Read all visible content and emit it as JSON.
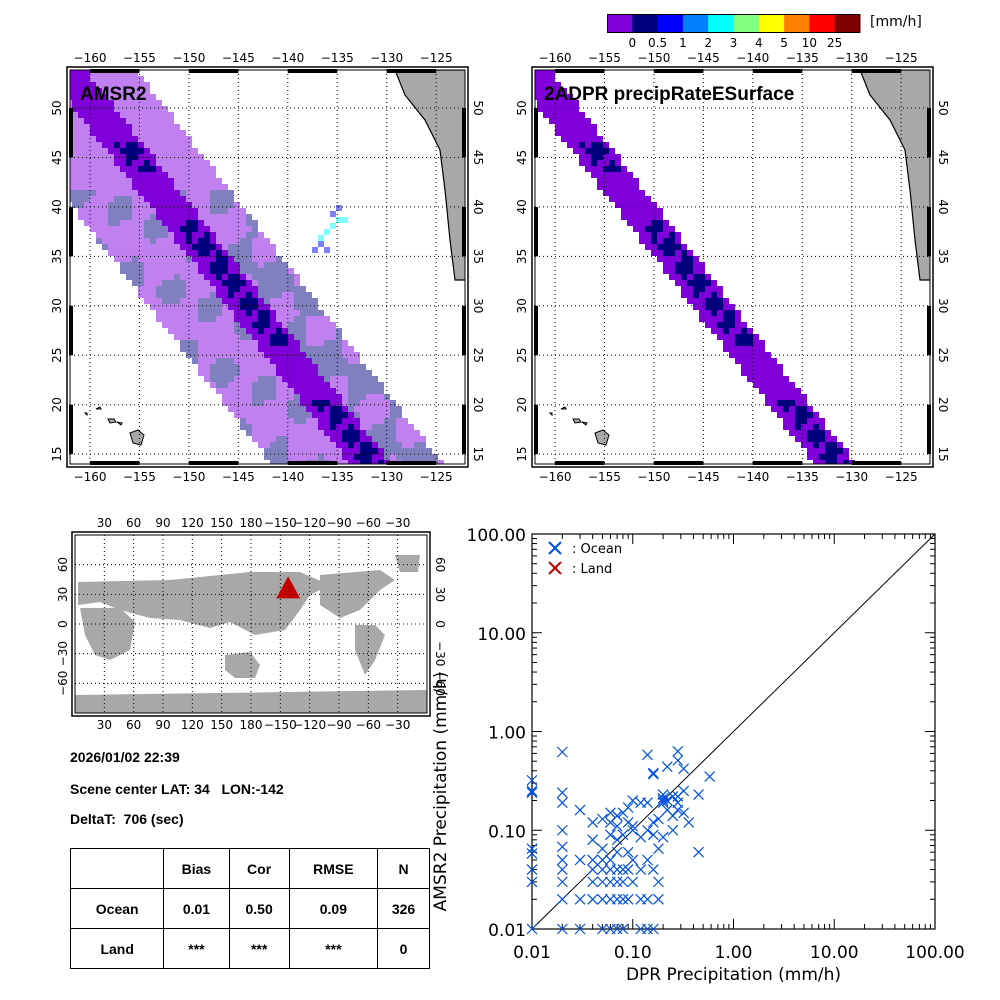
{
  "colorbar": {
    "unit": "[mm/h]",
    "colors": [
      "#7f00d8",
      "#00007f",
      "#0000ff",
      "#0080ff",
      "#00ffff",
      "#80ff80",
      "#ffff00",
      "#ff8000",
      "#ff0000",
      "#7f0000"
    ],
    "labels": [
      "0",
      "0.5",
      "1",
      "2",
      "3",
      "4",
      "5",
      "10",
      "25"
    ]
  },
  "map_colors": {
    "swath_light": "#c080f0",
    "swath_gray": "#8080c0",
    "rain_purple": "#7f00d8",
    "rain_navy": "#00007f",
    "rain_blue": "#8080ff",
    "rain_cyan": "#80ffff",
    "land": "#a8a8a8"
  },
  "map_amsr2": {
    "title": "AMSR2",
    "lon_ticks": [
      "-160",
      "-155",
      "-150",
      "-145",
      "-140",
      "-135",
      "-130",
      "-125"
    ],
    "lat_ticks": [
      "50",
      "45",
      "40",
      "35",
      "30",
      "25",
      "20",
      "15"
    ]
  },
  "map_dpr": {
    "title": "2ADPR precipRateESurface",
    "lon_ticks": [
      "-160",
      "-155",
      "-150",
      "-145",
      "-140",
      "-135",
      "-130",
      "-125"
    ],
    "lat_ticks": [
      "50",
      "45",
      "40",
      "35",
      "30",
      "25",
      "20",
      "15"
    ]
  },
  "world_map": {
    "lon_ticks": [
      "30",
      "60",
      "90",
      "120",
      "150",
      "180",
      "-150",
      "-120",
      "-90",
      "-60",
      "-30"
    ],
    "lat_ticks": [
      "60",
      "30",
      "0",
      "-30",
      "-60"
    ],
    "marker_color": "#c00000",
    "marker_lat": 34,
    "marker_lon": -142
  },
  "info": {
    "datetime": "2026/01/02 22:39",
    "scene_center": "Scene center LAT: 34   LON:-142",
    "delta_t": "DeltaT:  706 (sec)"
  },
  "stats_table": {
    "headers": [
      "",
      "Bias",
      "Cor",
      "RMSE",
      "N"
    ],
    "rows": [
      {
        "label": "Ocean",
        "bias": "0.01",
        "cor": "0.50",
        "rmse": "0.09",
        "n": "326"
      },
      {
        "label": "Land",
        "bias": "***",
        "cor": "***",
        "rmse": "***",
        "n": "0"
      }
    ]
  },
  "chart_data": {
    "type": "scatter",
    "title": "",
    "xlabel": "DPR Precipitation (mm/h)",
    "ylabel": "AMSR2 Precipitation (mm/h)",
    "xscale": "log",
    "yscale": "log",
    "xlim": [
      0.01,
      100
    ],
    "ylim": [
      0.01,
      100
    ],
    "xticks": [
      "0.01",
      "0.10",
      "1.00",
      "10.00",
      "100.00"
    ],
    "yticks": [
      "0.01",
      "0.10",
      "1.00",
      "10.00",
      "100.00"
    ],
    "one_to_one_line": true,
    "legend": {
      "placement": "top-left",
      "entries": [
        {
          "label": ": Ocean",
          "color": "#0050e0"
        },
        {
          "label": ": Land",
          "color": "#c00000"
        }
      ]
    },
    "series": [
      {
        "name": "Ocean",
        "color": "#0050e0",
        "points": [
          [
            0.01,
            0.32
          ],
          [
            0.01,
            0.25
          ],
          [
            0.01,
            0.24
          ],
          [
            0.01,
            0.065
          ],
          [
            0.01,
            0.058
          ],
          [
            0.01,
            0.04
          ],
          [
            0.01,
            0.03
          ],
          [
            0.01,
            0.01
          ],
          [
            0.02,
            0.62
          ],
          [
            0.02,
            0.24
          ],
          [
            0.02,
            0.19
          ],
          [
            0.02,
            0.1
          ],
          [
            0.02,
            0.068
          ],
          [
            0.02,
            0.05
          ],
          [
            0.02,
            0.04
          ],
          [
            0.02,
            0.03
          ],
          [
            0.02,
            0.02
          ],
          [
            0.02,
            0.01
          ],
          [
            0.03,
            0.16
          ],
          [
            0.03,
            0.05
          ],
          [
            0.03,
            0.02
          ],
          [
            0.03,
            0.01
          ],
          [
            0.04,
            0.12
          ],
          [
            0.04,
            0.08
          ],
          [
            0.04,
            0.05
          ],
          [
            0.04,
            0.04
          ],
          [
            0.04,
            0.03
          ],
          [
            0.04,
            0.02
          ],
          [
            0.05,
            0.13
          ],
          [
            0.05,
            0.065
          ],
          [
            0.05,
            0.05
          ],
          [
            0.05,
            0.04
          ],
          [
            0.05,
            0.03
          ],
          [
            0.05,
            0.02
          ],
          [
            0.05,
            0.01
          ],
          [
            0.06,
            0.15
          ],
          [
            0.06,
            0.12
          ],
          [
            0.06,
            0.09
          ],
          [
            0.06,
            0.05
          ],
          [
            0.06,
            0.04
          ],
          [
            0.06,
            0.03
          ],
          [
            0.06,
            0.02
          ],
          [
            0.06,
            0.01
          ],
          [
            0.07,
            0.14
          ],
          [
            0.07,
            0.14
          ],
          [
            0.07,
            0.11
          ],
          [
            0.07,
            0.08
          ],
          [
            0.07,
            0.06
          ],
          [
            0.07,
            0.04
          ],
          [
            0.07,
            0.03
          ],
          [
            0.07,
            0.02
          ],
          [
            0.07,
            0.01
          ],
          [
            0.08,
            0.15
          ],
          [
            0.08,
            0.09
          ],
          [
            0.08,
            0.04
          ],
          [
            0.08,
            0.03
          ],
          [
            0.08,
            0.02
          ],
          [
            0.08,
            0.01
          ],
          [
            0.09,
            0.17
          ],
          [
            0.09,
            0.12
          ],
          [
            0.09,
            0.06
          ],
          [
            0.09,
            0.04
          ],
          [
            0.09,
            0.02
          ],
          [
            0.1,
            0.2
          ],
          [
            0.1,
            0.11
          ],
          [
            0.1,
            0.1
          ],
          [
            0.1,
            0.05
          ],
          [
            0.1,
            0.03
          ],
          [
            0.12,
            0.19
          ],
          [
            0.12,
            0.085
          ],
          [
            0.12,
            0.04
          ],
          [
            0.12,
            0.02
          ],
          [
            0.12,
            0.01
          ],
          [
            0.14,
            0.58
          ],
          [
            0.14,
            0.19
          ],
          [
            0.14,
            0.1
          ],
          [
            0.14,
            0.05
          ],
          [
            0.14,
            0.02
          ],
          [
            0.14,
            0.01
          ],
          [
            0.16,
            0.37
          ],
          [
            0.16,
            0.38
          ],
          [
            0.16,
            0.12
          ],
          [
            0.16,
            0.09
          ],
          [
            0.16,
            0.04
          ],
          [
            0.16,
            0.01
          ],
          [
            0.18,
            0.13
          ],
          [
            0.18,
            0.065
          ],
          [
            0.18,
            0.03
          ],
          [
            0.18,
            0.02
          ],
          [
            0.2,
            0.23
          ],
          [
            0.2,
            0.21
          ],
          [
            0.2,
            0.2
          ],
          [
            0.2,
            0.19
          ],
          [
            0.2,
            0.085
          ],
          [
            0.22,
            0.44
          ],
          [
            0.22,
            0.2
          ],
          [
            0.22,
            0.16
          ],
          [
            0.25,
            0.22
          ],
          [
            0.25,
            0.14
          ],
          [
            0.25,
            0.1
          ],
          [
            0.28,
            0.63
          ],
          [
            0.28,
            0.51
          ],
          [
            0.28,
            0.22
          ],
          [
            0.28,
            0.19
          ],
          [
            0.28,
            0.16
          ],
          [
            0.32,
            0.42
          ],
          [
            0.32,
            0.25
          ],
          [
            0.32,
            0.15
          ],
          [
            0.36,
            0.12
          ],
          [
            0.45,
            0.23
          ],
          [
            0.45,
            0.06
          ],
          [
            0.58,
            0.35
          ]
        ]
      },
      {
        "name": "Land",
        "color": "#c00000",
        "points": []
      }
    ]
  }
}
